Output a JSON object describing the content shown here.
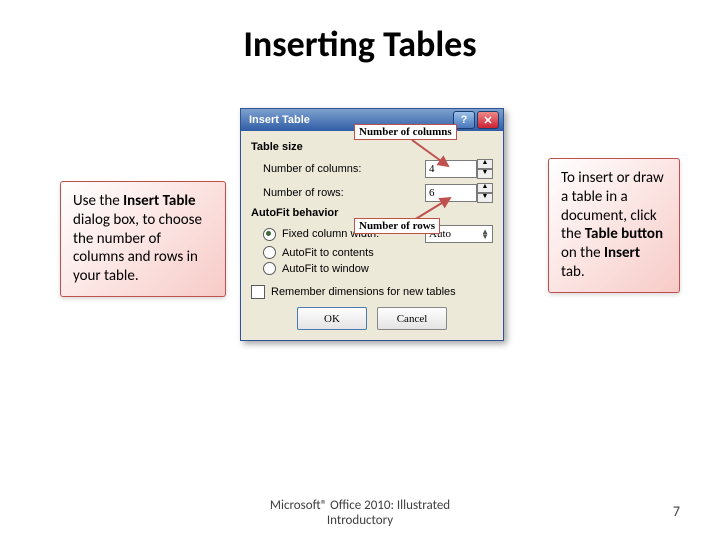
{
  "title": "Inserting Tables",
  "callout_left_html": "Use the <b>Insert Table</b> dialog box, to choose the number of columns and rows in your table.",
  "callout_right_html": "To insert or draw a table in a document, click the <b>Table button</b> on the <b>Insert</b> tab.",
  "dialog": {
    "title": "Insert Table",
    "group_size": "Table size",
    "num_cols_label": "Number of columns:",
    "num_cols_value": "4",
    "num_rows_label": "Number of rows:",
    "num_rows_value": "6",
    "group_autofit": "AutoFit behavior",
    "opt_fixed": "Fixed column width:",
    "opt_fixed_value": "Auto",
    "opt_contents": "AutoFit to contents",
    "opt_window": "AutoFit to window",
    "remember": "Remember dimensions for new tables",
    "ok": "OK",
    "cancel": "Cancel"
  },
  "annotations": {
    "cols_box": "Number of columns",
    "rows_box": "Number of rows"
  },
  "footer_line1": "Microsoft® Office 2010: Illustrated",
  "footer_line2": "Introductory",
  "page_number": "7",
  "colors": {
    "accent": "#c0504d",
    "titlebar_top": "#7da2ce",
    "titlebar_bottom": "#2f5ca6",
    "dialog_bg": "#ece9d8"
  }
}
